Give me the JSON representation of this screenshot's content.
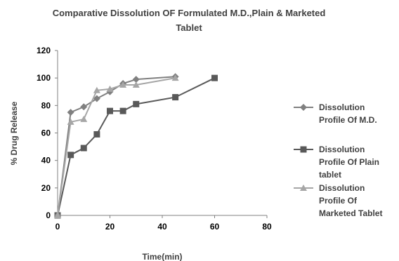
{
  "chart_data": {
    "type": "line",
    "title_lines": [
      "Comparative Dissolution OF Formulated M.D.,Plain & Marketed",
      "Tablet"
    ],
    "xlabel": "Time(min)",
    "ylabel": "% Drug Release",
    "xlim": [
      0,
      80
    ],
    "ylim": [
      0,
      120
    ],
    "x_ticks": [
      "0",
      "20",
      "40",
      "60",
      "80"
    ],
    "y_ticks": [
      "0",
      "20",
      "40",
      "60",
      "80",
      "100",
      "120"
    ],
    "grid": false,
    "legend_position": "right",
    "series": [
      {
        "name_lines": [
          "Dissolution",
          "Profile Of M.D."
        ],
        "marker": "diamond",
        "color": "#808080",
        "x": [
          0,
          5,
          10,
          15,
          20,
          25,
          30,
          45
        ],
        "y": [
          0,
          75,
          79,
          85,
          90,
          96,
          99,
          101
        ]
      },
      {
        "name_lines": [
          "Dissolution",
          "Profile Of Plain",
          "tablet"
        ],
        "marker": "square",
        "color": "#595959",
        "x": [
          0,
          5,
          10,
          15,
          20,
          25,
          30,
          45,
          60
        ],
        "y": [
          0,
          44,
          49,
          59,
          76,
          76,
          81,
          86,
          100
        ]
      },
      {
        "name_lines": [
          "Dissolution",
          "Profile Of",
          "Marketed Tablet"
        ],
        "marker": "triangle",
        "color": "#a6a6a6",
        "x": [
          0,
          5,
          10,
          15,
          20,
          25,
          30,
          45
        ],
        "y": [
          0,
          68,
          70,
          91,
          92,
          95,
          95,
          100
        ]
      }
    ]
  }
}
